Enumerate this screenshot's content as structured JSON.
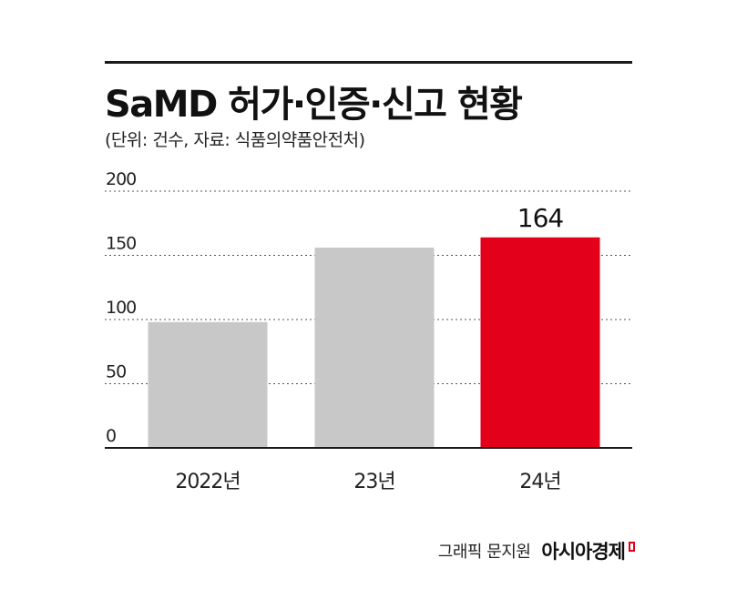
{
  "title": "SaMD 허가·인증·신고 현황",
  "subtitle": "(단위: 건수, 자료: 식품의약품안전처)",
  "credit": {
    "graphic": "그래픽 문지원",
    "brand": "아시아경제"
  },
  "colors": {
    "bar_default": "#c8c8c8",
    "bar_highlight": "#e2001a",
    "grid": "#555555",
    "axis": "#1a1a1a"
  },
  "chart_data": {
    "type": "bar",
    "categories": [
      "2022년",
      "23년",
      "24년"
    ],
    "values": [
      98,
      156,
      164
    ],
    "ylim": [
      0,
      200
    ],
    "yticks": [
      0,
      50,
      100,
      150,
      200
    ],
    "ytick_labels": [
      "0",
      "50",
      "100",
      "150",
      "200"
    ],
    "highlight_index": 2,
    "data_labels": [
      "",
      "",
      "164"
    ],
    "grid": true,
    "grid_style": "dotted"
  }
}
